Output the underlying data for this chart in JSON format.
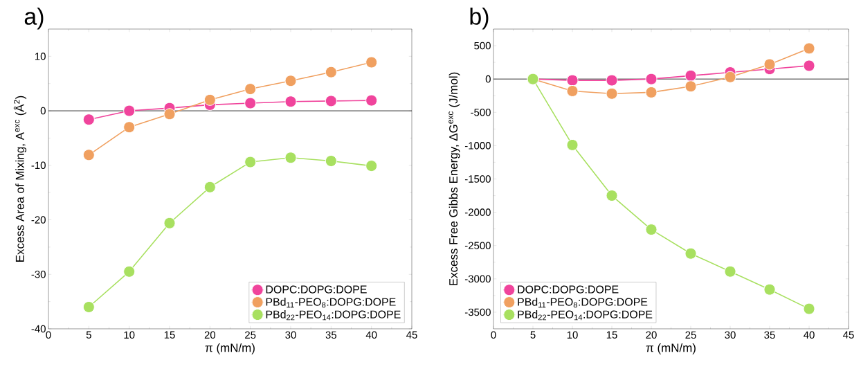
{
  "chart_data": [
    {
      "type": "line",
      "title": "a)",
      "xlabel": "π (mN/m)",
      "ylabel": "Excess Area of Mixing, A$^{exc}$ (Å$^{2}$)",
      "x": [
        5,
        10,
        15,
        20,
        25,
        30,
        35,
        40
      ],
      "series": [
        {
          "name": "DOPC:DOPG:DOPE",
          "color": "#f0449c",
          "values": [
            -1.6,
            0,
            0.5,
            1.1,
            1.4,
            1.7,
            1.8,
            1.9
          ]
        },
        {
          "name": "PBd$_{11}$-PEO$_{8}$:DOPG:DOPE",
          "color": "#f0a060",
          "values": [
            -8.1,
            -3,
            -0.6,
            2,
            4,
            5.5,
            7.1,
            8.9
          ]
        },
        {
          "name": "PBd$_{22}$-PEO$_{14}$:DOPG:DOPE",
          "color": "#a8e060",
          "values": [
            -36,
            -29.5,
            -20.6,
            -14,
            -9.4,
            -8.6,
            -9.2,
            -10.1
          ]
        }
      ],
      "xlim": [
        0,
        45
      ],
      "xticks": [
        0,
        5,
        10,
        15,
        20,
        25,
        30,
        35,
        40,
        45
      ],
      "ylim": [
        -40,
        15
      ],
      "yticks": [
        -40,
        -30,
        -20,
        -10,
        0,
        10
      ],
      "ref_lines": [
        {
          "axis": "y",
          "value": 0,
          "color": "#000000"
        }
      ],
      "legend": "bottom right",
      "marker": "circle",
      "line_style": "solid",
      "grid": false
    },
    {
      "type": "line",
      "title": "b)",
      "xlabel": "π (mN/m)",
      "ylabel": "Excess Free Gibbs Energy, ΔG$^{exc}$ (J/mol)",
      "x": [
        5,
        10,
        15,
        20,
        25,
        30,
        35,
        40
      ],
      "series": [
        {
          "name": "DOPC:DOPG:DOPE",
          "color": "#f0449c",
          "values": [
            0,
            -20,
            -20,
            0,
            50,
            100,
            150,
            200
          ]
        },
        {
          "name": "PBd$_{11}$-PEO$_{8}$:DOPG:DOPE",
          "color": "#f0a060",
          "values": [
            0,
            -180,
            -220,
            -200,
            -110,
            30,
            220,
            460
          ]
        },
        {
          "name": "PBd$_{22}$-PEO$_{14}$:DOPG:DOPE",
          "color": "#a8e060",
          "values": [
            0,
            -990,
            -1750,
            -2260,
            -2620,
            -2890,
            -3160,
            -3450
          ]
        }
      ],
      "xlim": [
        0,
        45
      ],
      "xticks": [
        0,
        5,
        10,
        15,
        20,
        25,
        30,
        35,
        40,
        45
      ],
      "ylim": [
        -3750,
        750
      ],
      "yticks": [
        -3500,
        -3000,
        -2500,
        -2000,
        -1500,
        -1000,
        -500,
        0,
        500
      ],
      "ref_lines": [
        {
          "axis": "y",
          "value": 0,
          "color": "#000000"
        }
      ],
      "legend": "bottom left",
      "marker": "circle",
      "line_style": "solid",
      "grid": false
    }
  ]
}
